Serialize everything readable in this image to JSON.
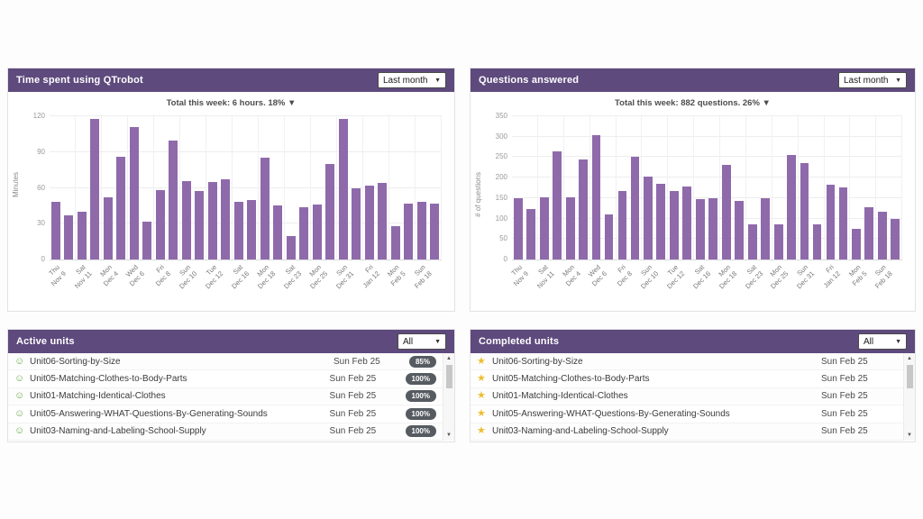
{
  "theme": {
    "header_purple": "#5e4a7d",
    "bar_purple": "#8f6aab",
    "badge_gray": "#555b61",
    "star_gold": "#eebd2e",
    "active_green": "#6fae4e"
  },
  "panels": {
    "time_chart": {
      "title": "Time spent using QTrobot",
      "filter": "Last month"
    },
    "questions_chart": {
      "title": "Questions answered",
      "filter": "Last month"
    },
    "active_units": {
      "title": "Active units",
      "filter": "All"
    },
    "completed_units": {
      "title": "Completed units",
      "filter": "All"
    }
  },
  "chart_data": [
    {
      "type": "bar",
      "title": "Time spent using QTrobot",
      "subtitle": "Total this week: 6 hours. 18%",
      "trend_arrow": "▼",
      "ylabel": "Minutes",
      "xlabel": "",
      "ylim": [
        0,
        120
      ],
      "yticks": [
        0,
        30,
        60,
        90,
        120
      ],
      "grid": true,
      "legend": "none",
      "categories": [
        "Thu\nNov 9",
        "",
        "Sat\nNov 11",
        "",
        "Mon\nDec 4",
        "",
        "Wed\nDec 6",
        "",
        "Fri\nDec 8",
        "",
        "Sun\nDec 10",
        "",
        "Tue\nDec 12",
        "",
        "Sat\nDec 16",
        "",
        "Mon\nDec 18",
        "",
        "Sat\nDec 23",
        "",
        "Mon\nDec 25",
        "",
        "Sun\nDec 31",
        "",
        "Fri\nJan 12",
        "",
        "Mon\nFeb 5",
        "",
        "Sun\nFeb 18",
        ""
      ],
      "values": [
        48,
        37,
        40,
        118,
        52,
        86,
        111,
        32,
        58,
        100,
        66,
        57,
        65,
        67,
        48,
        50,
        85,
        45,
        20,
        44,
        46,
        80,
        118,
        60,
        62,
        64,
        28,
        47,
        48,
        47
      ]
    },
    {
      "type": "bar",
      "title": "Questions answered",
      "subtitle": "Total this week: 882 questions. 26%",
      "trend_arrow": "▼",
      "ylabel": "# of questions",
      "xlabel": "",
      "ylim": [
        0,
        350
      ],
      "yticks": [
        0,
        50,
        100,
        150,
        200,
        250,
        300,
        350
      ],
      "grid": true,
      "legend": "none",
      "categories": [
        "Thu\nNov 9",
        "",
        "Sat\nNov 11",
        "",
        "Mon\nDec 4",
        "",
        "Wed\nDec 6",
        "",
        "Fri\nDec 8",
        "",
        "Sun\nDec 10",
        "",
        "Tue\nDec 12",
        "",
        "Sat\nDec 16",
        "",
        "Mon\nDec 18",
        "",
        "Sat\nDec 23",
        "",
        "Mon\nDec 25",
        "",
        "Sun\nDec 31",
        "",
        "Fri\nJan 12",
        "",
        "Mon\nFeb 5",
        "",
        "Sun\nFeb 18",
        ""
      ],
      "values": [
        150,
        123,
        152,
        265,
        153,
        245,
        304,
        111,
        168,
        251,
        202,
        184,
        168,
        178,
        148,
        150,
        232,
        144,
        85,
        150,
        86,
        256,
        235,
        86,
        183,
        177,
        75,
        128,
        117,
        100
      ]
    }
  ],
  "active_units": {
    "rows": [
      {
        "name": "Unit06-Sorting-by-Size",
        "date": "Sun Feb 25",
        "progress": "85%"
      },
      {
        "name": "Unit05-Matching-Clothes-to-Body-Parts",
        "date": "Sun Feb 25",
        "progress": "100%"
      },
      {
        "name": "Unit01-Matching-Identical-Clothes",
        "date": "Sun Feb 25",
        "progress": "100%"
      },
      {
        "name": "Unit05-Answering-WHAT-Questions-By-Generating-Sounds",
        "date": "Sun Feb 25",
        "progress": "100%"
      },
      {
        "name": "Unit03-Naming-and-Labeling-School-Supply",
        "date": "Sun Feb 25",
        "progress": "100%"
      }
    ]
  },
  "completed_units": {
    "rows": [
      {
        "name": "Unit06-Sorting-by-Size",
        "date": "Sun Feb 25"
      },
      {
        "name": "Unit05-Matching-Clothes-to-Body-Parts",
        "date": "Sun Feb 25"
      },
      {
        "name": "Unit01-Matching-Identical-Clothes",
        "date": "Sun Feb 25"
      },
      {
        "name": "Unit05-Answering-WHAT-Questions-By-Generating-Sounds",
        "date": "Sun Feb 25"
      },
      {
        "name": "Unit03-Naming-and-Labeling-School-Supply",
        "date": "Sun Feb 25"
      }
    ]
  },
  "icons": {
    "dropdown_chevron": "▼",
    "scroll_up": "▲",
    "scroll_down": "▼",
    "active_unit": "smiley-circle",
    "completed_unit": "star"
  }
}
